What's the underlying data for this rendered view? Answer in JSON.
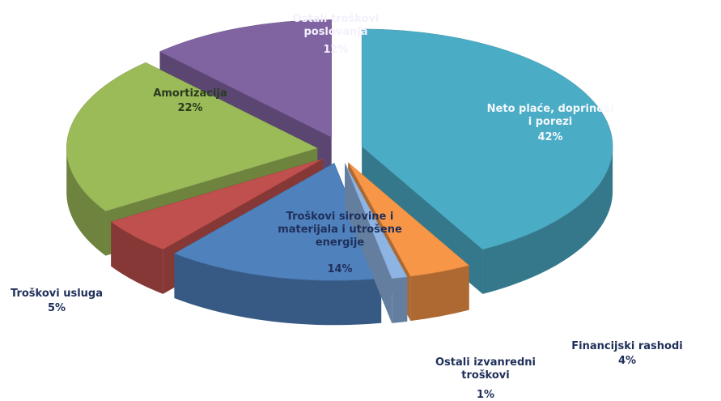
{
  "chart_data": {
    "type": "pie",
    "categories": [
      "Neto plaće, doprinosi i porezi",
      "Financijski rashodi",
      "Ostali izvanredni troškovi",
      "Troškovi sirovine i materijala i utrošene energije",
      "Troškovi usluga",
      "Amortizacija",
      "Ostali troškovi poslovanja"
    ],
    "values": [
      42,
      4,
      1,
      14,
      5,
      22,
      12
    ],
    "value_labels": [
      "42%",
      "4%",
      "1%",
      "14%",
      "5%",
      "22%",
      "12%"
    ],
    "colors": [
      "#4bacc6",
      "#f79646",
      "#8eb4e3",
      "#4f81bd",
      "#c0504d",
      "#9bbb59",
      "#8064a2"
    ]
  }
}
